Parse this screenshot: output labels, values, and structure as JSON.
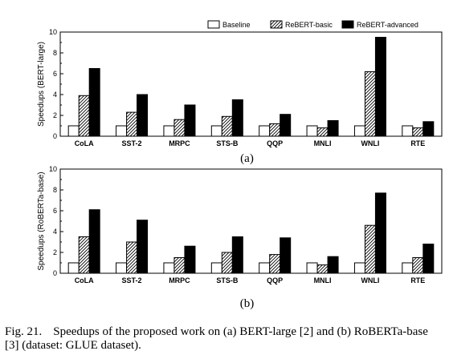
{
  "chart_data": [
    {
      "type": "bar",
      "subtitle": "(a)",
      "ylabel": "Speedups (BERT-large)",
      "ylim": [
        0,
        10
      ],
      "yticks": [
        0,
        2,
        4,
        6,
        8,
        10
      ],
      "categories": [
        "CoLA",
        "SST-2",
        "MRPC",
        "STS-B",
        "QQP",
        "MNLI",
        "WNLI",
        "RTE"
      ],
      "grid": false,
      "legend": "top",
      "series": [
        {
          "name": "Baseline",
          "values": [
            1,
            1,
            1,
            1,
            1,
            1,
            1,
            1
          ],
          "fill": "#ffffff"
        },
        {
          "name": "ReBERT-basic",
          "values": [
            3.9,
            2.3,
            1.6,
            1.9,
            1.2,
            0.8,
            6.2,
            0.8
          ],
          "fill": "hatch"
        },
        {
          "name": "ReBERT-advanced",
          "values": [
            6.5,
            4.0,
            3.0,
            3.5,
            2.1,
            1.5,
            9.5,
            1.4
          ],
          "fill": "#000000"
        }
      ]
    },
    {
      "type": "bar",
      "subtitle": "(b)",
      "ylabel": "Speedups (RoBERTa-base)",
      "ylim": [
        0,
        10
      ],
      "yticks": [
        0,
        2,
        4,
        6,
        8,
        10
      ],
      "categories": [
        "CoLA",
        "SST-2",
        "MRPC",
        "STS-B",
        "QQP",
        "MNLI",
        "WNLI",
        "RTE"
      ],
      "grid": false,
      "legend": "none",
      "series": [
        {
          "name": "Baseline",
          "values": [
            1,
            1,
            1,
            1,
            1,
            1,
            1,
            1
          ],
          "fill": "#ffffff"
        },
        {
          "name": "ReBERT-basic",
          "values": [
            3.5,
            3.0,
            1.5,
            2.0,
            1.8,
            0.8,
            4.6,
            1.5
          ],
          "fill": "hatch"
        },
        {
          "name": "ReBERT-advanced",
          "values": [
            6.1,
            5.1,
            2.6,
            3.5,
            3.4,
            1.6,
            7.7,
            2.8
          ],
          "fill": "#000000"
        }
      ]
    }
  ],
  "caption": {
    "label": "Fig. 21.",
    "text": "Speedups of the proposed work on (a) BERT-large [2] and (b) RoBERTa-base [3] (dataset: GLUE dataset)."
  }
}
